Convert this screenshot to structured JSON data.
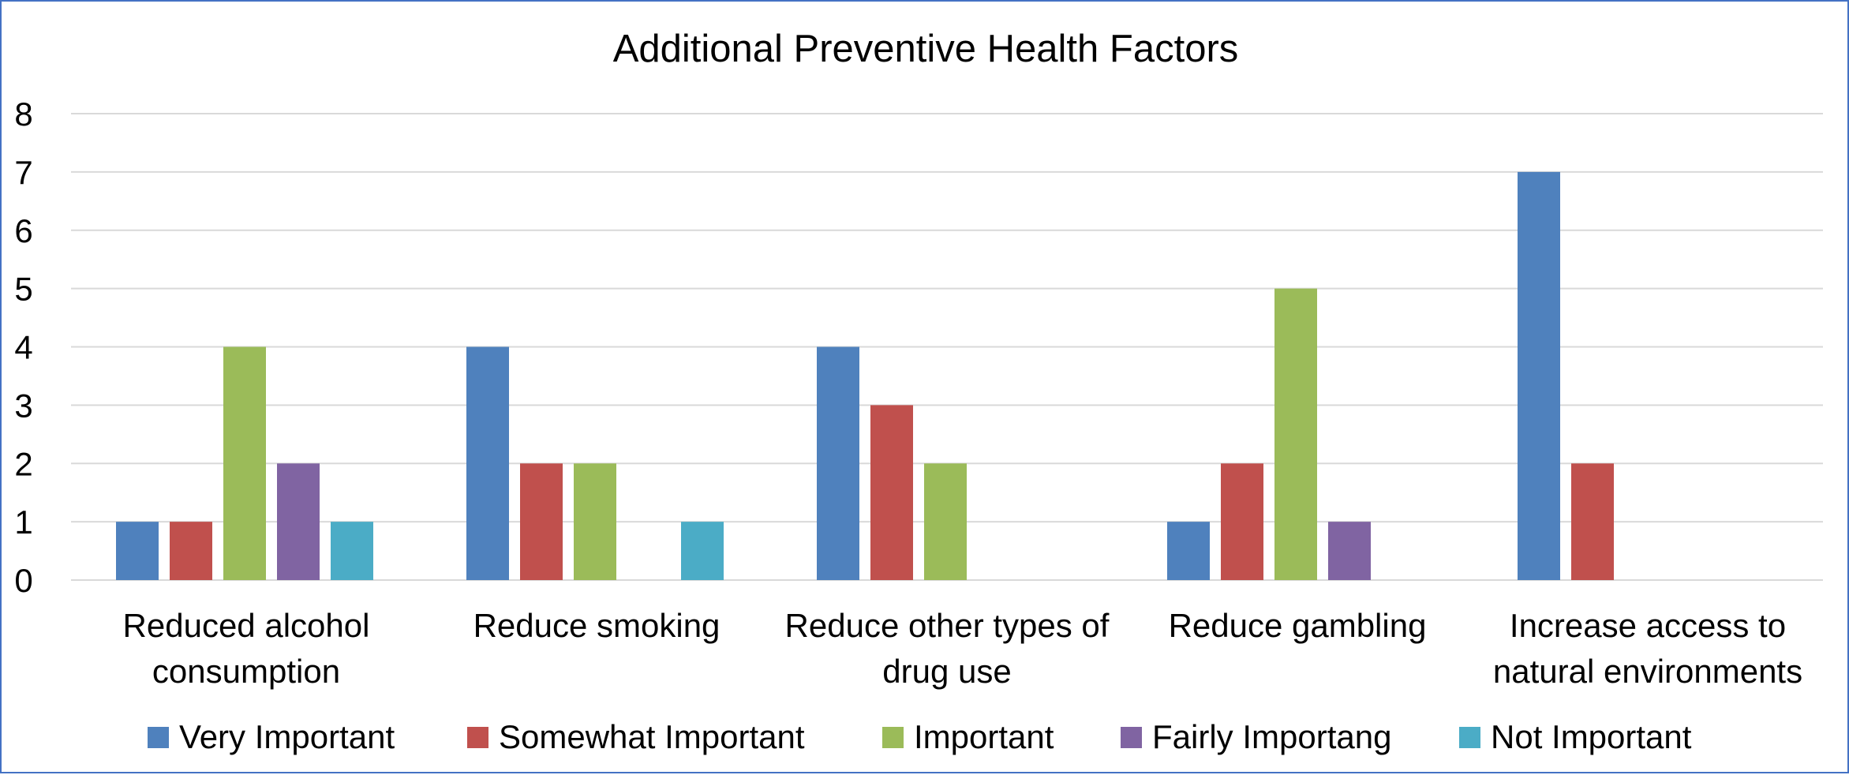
{
  "chart_data": {
    "type": "bar",
    "title": "Additional Preventive Health Factors",
    "xlabel": "",
    "ylabel": "",
    "ylim": [
      0,
      8
    ],
    "yticks": [
      "0",
      "1",
      "2",
      "3",
      "4",
      "5",
      "6",
      "7",
      "8"
    ],
    "grid": true,
    "legend_position": "bottom",
    "categories": [
      [
        "Reduced alcohol",
        "consumption"
      ],
      [
        "Reduce smoking"
      ],
      [
        "Reduce other types of",
        "drug use"
      ],
      [
        "Reduce gambling"
      ],
      [
        "Increase access to",
        "natural environments"
      ]
    ],
    "series": [
      {
        "name": "Very Important",
        "color": "#4F81BD",
        "values": [
          1,
          4,
          4,
          1,
          7
        ]
      },
      {
        "name": "Somewhat Important",
        "color": "#C0504D",
        "values": [
          1,
          2,
          3,
          2,
          2
        ]
      },
      {
        "name": "Important",
        "color": "#9BBB59",
        "values": [
          4,
          2,
          2,
          5,
          0
        ]
      },
      {
        "name": "Fairly Importang",
        "color": "#8064A2",
        "values": [
          2,
          0,
          0,
          1,
          0
        ]
      },
      {
        "name": "Not Important",
        "color": "#4BACC6",
        "values": [
          1,
          1,
          0,
          0,
          0
        ]
      }
    ]
  }
}
